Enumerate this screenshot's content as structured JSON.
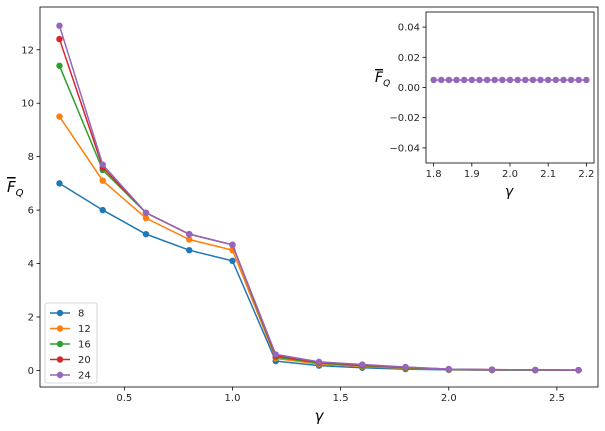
{
  "chart_data": [
    {
      "type": "line",
      "title": "",
      "xlabel": "γ",
      "ylabel": "F̄_Q",
      "xlim": [
        0.11,
        2.69
      ],
      "ylim": [
        -0.62,
        13.6
      ],
      "xticks": [
        0.5,
        1.0,
        1.5,
        2.0,
        2.5
      ],
      "xtick_labels": [
        "0.5",
        "1.0",
        "1.5",
        "2.0",
        "2.5"
      ],
      "yticks": [
        0,
        2,
        4,
        6,
        8,
        10,
        12
      ],
      "ytick_labels": [
        "0",
        "2",
        "4",
        "6",
        "8",
        "10",
        "12"
      ],
      "x": [
        0.2,
        0.4,
        0.6,
        0.8,
        1.0,
        1.2,
        1.4,
        1.6,
        1.8,
        2.0,
        2.2,
        2.4,
        2.6
      ],
      "legend_position": "lower-left",
      "grid": false,
      "series": [
        {
          "name": "8",
          "color": "#1f77b4",
          "values": [
            7.0,
            6.0,
            5.1,
            4.5,
            4.1,
            0.35,
            0.18,
            0.1,
            0.05,
            0.02,
            0.01,
            0.01,
            0.01
          ]
        },
        {
          "name": "12",
          "color": "#ff7f0e",
          "values": [
            9.5,
            7.1,
            5.7,
            4.9,
            4.5,
            0.45,
            0.24,
            0.15,
            0.08,
            0.03,
            0.02,
            0.01,
            0.01
          ]
        },
        {
          "name": "16",
          "color": "#2ca02c",
          "values": [
            11.4,
            7.5,
            5.9,
            5.1,
            4.7,
            0.5,
            0.28,
            0.18,
            0.1,
            0.04,
            0.02,
            0.01,
            0.01
          ]
        },
        {
          "name": "20",
          "color": "#d62728",
          "values": [
            12.4,
            7.6,
            5.9,
            5.1,
            4.7,
            0.55,
            0.3,
            0.2,
            0.12,
            0.05,
            0.03,
            0.02,
            0.01
          ]
        },
        {
          "name": "24",
          "color": "#9467bd",
          "values": [
            12.9,
            7.7,
            5.9,
            5.1,
            4.7,
            0.6,
            0.32,
            0.22,
            0.13,
            0.05,
            0.03,
            0.02,
            0.01
          ]
        }
      ]
    },
    {
      "type": "scatter",
      "title": "",
      "xlabel": "γ",
      "ylabel": "F̄_Q",
      "xlim": [
        1.78,
        2.22
      ],
      "ylim": [
        -0.05,
        0.05
      ],
      "xticks": [
        1.8,
        1.9,
        2.0,
        2.1,
        2.2
      ],
      "xtick_labels": [
        "1.8",
        "1.9",
        "2.0",
        "2.1",
        "2.2"
      ],
      "yticks": [
        -0.04,
        -0.02,
        0.0,
        0.02,
        0.04
      ],
      "ytick_labels": [
        "−0.04",
        "−0.02",
        "0.00",
        "0.02",
        "0.04"
      ],
      "x": [
        1.8,
        1.82,
        1.84,
        1.86,
        1.88,
        1.9,
        1.92,
        1.94,
        1.96,
        1.98,
        2.0,
        2.02,
        2.04,
        2.06,
        2.08,
        2.1,
        2.12,
        2.14,
        2.16,
        2.18,
        2.2
      ],
      "series": [
        {
          "name": "24",
          "color": "#9467bd",
          "values": [
            0.005,
            0.005,
            0.005,
            0.005,
            0.005,
            0.005,
            0.005,
            0.005,
            0.005,
            0.005,
            0.005,
            0.005,
            0.005,
            0.005,
            0.005,
            0.005,
            0.005,
            0.005,
            0.005,
            0.005,
            0.005
          ]
        }
      ]
    }
  ]
}
